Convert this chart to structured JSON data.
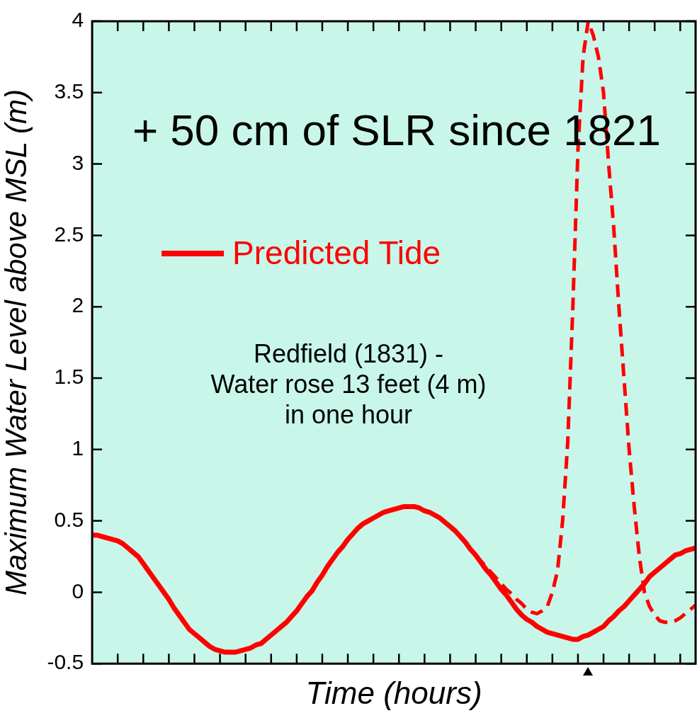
{
  "chart_data": {
    "type": "line",
    "xlabel": "Time (hours)",
    "ylabel": "Maximum Water Level above MSL (m)",
    "categories": [
      null,
      null,
      null,
      null,
      null,
      null,
      null,
      null,
      null,
      null,
      null,
      null,
      null,
      null,
      null,
      null,
      null,
      null,
      null,
      null,
      null,
      null,
      null,
      null,
      null,
      null,
      null,
      null,
      null,
      null,
      null,
      null,
      null,
      null,
      null,
      null,
      null,
      null,
      null,
      null,
      null,
      null,
      null,
      null,
      null,
      null,
      null,
      null,
      null,
      null,
      null,
      null,
      null,
      null,
      null,
      null,
      null,
      null,
      null,
      null,
      null,
      null,
      null,
      null,
      null,
      null,
      null,
      null,
      null,
      null,
      null,
      null,
      null,
      null,
      null,
      null,
      null,
      null,
      null,
      null,
      null,
      null,
      null,
      null,
      null,
      null,
      null,
      null,
      null,
      null,
      null,
      null,
      null,
      null,
      null,
      null,
      null,
      null,
      null,
      null,
      null,
      null,
      null,
      null,
      null,
      null,
      null,
      null,
      null,
      null,
      null,
      null,
      null,
      null,
      null,
      null,
      null,
      null,
      null
    ],
    "ylim": [
      -0.5,
      4
    ],
    "yticks": [
      -0.5,
      0,
      0.5,
      1,
      1.5,
      2,
      2.5,
      3,
      3.5,
      4
    ],
    "tick_labels": "y",
    "grid": false,
    "legend": "top left",
    "marker": "none",
    "annotations": [
      "+ 50 cm of SLR since 1821",
      "Redfield (1831) -\nWater rose 13 feet (4 m)\nin one hour"
    ],
    "series": [
      {
        "name": "Predicted Tide",
        "color": "#ff0000",
        "line_style": "solid",
        "values": [
          0.4,
          0.4,
          0.39,
          0.38,
          0.37,
          0.36,
          0.34,
          0.31,
          0.28,
          0.25,
          0.2,
          0.15,
          0.1,
          0.05,
          0.0,
          -0.05,
          -0.11,
          -0.16,
          -0.21,
          -0.26,
          -0.29,
          -0.32,
          -0.35,
          -0.38,
          -0.4,
          -0.41,
          -0.42,
          -0.42,
          -0.42,
          -0.41,
          -0.4,
          -0.39,
          -0.37,
          -0.36,
          -0.33,
          -0.3,
          -0.27,
          -0.24,
          -0.21,
          -0.17,
          -0.13,
          -0.08,
          -0.03,
          0.01,
          0.07,
          0.12,
          0.18,
          0.23,
          0.28,
          0.32,
          0.37,
          0.41,
          0.45,
          0.48,
          0.5,
          0.52,
          0.54,
          0.56,
          0.57,
          0.58,
          0.59,
          0.6,
          0.6,
          0.6,
          0.59,
          0.57,
          0.56,
          0.54,
          0.52,
          0.49,
          0.46,
          0.43,
          0.39,
          0.35,
          0.3,
          0.26,
          0.21,
          0.16,
          0.12,
          0.07,
          0.02,
          -0.02,
          -0.07,
          -0.12,
          -0.16,
          -0.19,
          -0.21,
          -0.24,
          -0.26,
          -0.28,
          -0.29,
          -0.3,
          -0.31,
          -0.32,
          -0.33,
          -0.33,
          -0.31,
          -0.3,
          -0.28,
          -0.26,
          -0.24,
          -0.2,
          -0.17,
          -0.13,
          -0.1,
          -0.06,
          -0.02,
          0.02,
          0.06,
          0.11,
          0.14,
          0.17,
          0.2,
          0.23,
          0.26,
          0.27,
          0.29,
          0.3,
          0.31
        ]
      },
      {
        "color": "#ff0000",
        "line_style": "dashed",
        "values": [
          null,
          null,
          null,
          null,
          null,
          null,
          null,
          null,
          null,
          null,
          null,
          null,
          null,
          null,
          null,
          null,
          null,
          null,
          null,
          null,
          null,
          null,
          null,
          null,
          null,
          null,
          null,
          null,
          null,
          null,
          null,
          null,
          null,
          null,
          null,
          null,
          null,
          null,
          null,
          null,
          null,
          null,
          null,
          null,
          null,
          null,
          null,
          null,
          null,
          null,
          null,
          null,
          null,
          null,
          null,
          null,
          null,
          null,
          null,
          null,
          null,
          null,
          null,
          null,
          null,
          null,
          null,
          null,
          null,
          null,
          null,
          null,
          null,
          null,
          null,
          0.26,
          0.22,
          0.18,
          0.14,
          0.1,
          0.06,
          0.02,
          -0.01,
          -0.05,
          -0.08,
          -0.12,
          -0.14,
          -0.15,
          -0.13,
          -0.1,
          0.0,
          0.15,
          0.5,
          1.05,
          2.0,
          3.1,
          3.75,
          4.0,
          3.9,
          3.75,
          3.5,
          3.0,
          2.55,
          2.0,
          1.5,
          1.0,
          0.6,
          0.25,
          0.0,
          -0.1,
          -0.16,
          -0.2,
          -0.21,
          -0.21,
          -0.2,
          -0.18,
          -0.15,
          -0.12,
          -0.09
        ]
      }
    ]
  }
}
